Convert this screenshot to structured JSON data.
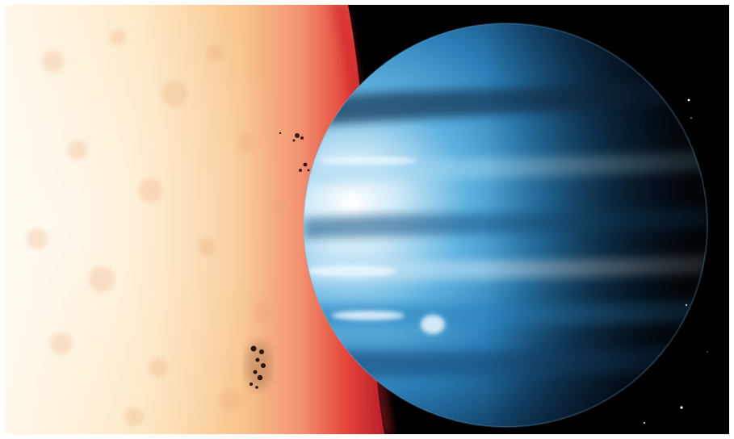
{
  "scene": {
    "subject": "",
    "colors": {
      "star_core": "#fff6e0",
      "star_mid": "#f8cf98",
      "star_edge": "#e5503f",
      "space": "#000000",
      "planet_light": "#ffffff",
      "planet_mid": "#3f9bd2",
      "planet_dark": "#07172a",
      "sunspot": "#2a1410"
    }
  }
}
